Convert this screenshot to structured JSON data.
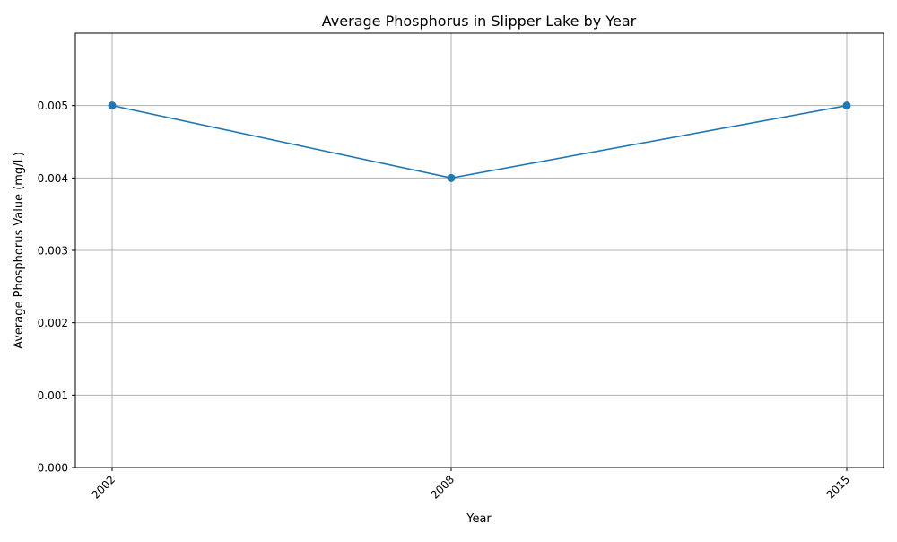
{
  "chart_data": {
    "type": "line",
    "title": "Average Phosphorus in Slipper Lake by Year",
    "xlabel": "Year",
    "ylabel": "Average Phosphorus Value (mg/L)",
    "x": [
      "2002",
      "2008",
      "2015"
    ],
    "series": [
      {
        "values": [
          0.005,
          0.004,
          0.005
        ],
        "color": "#1f77b4",
        "marker": "circle"
      }
    ],
    "ylim": [
      0,
      0.006
    ],
    "yticks": [
      0.0,
      0.001,
      0.002,
      0.003,
      0.004,
      0.005
    ],
    "ytick_labels": [
      "0.000",
      "0.001",
      "0.002",
      "0.003",
      "0.004",
      "0.005"
    ],
    "grid": true,
    "grid_color": "#b0b0b0",
    "axis_color": "#000000"
  }
}
